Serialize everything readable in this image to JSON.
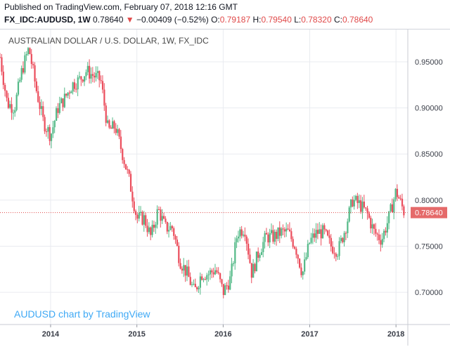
{
  "published": "Published on TradingView.com, February 07, 2018 12:16 GMT",
  "header": {
    "symbol": "FX_IDC:AUDUSD, 1W",
    "last": "0.78640",
    "change": "−0.00409 (−0.52%)",
    "o_label": "O:",
    "o_value": "0.79187",
    "h_label": "H:",
    "h_value": "0.79540",
    "l_label": "L:",
    "l_value": "0.78320",
    "c_label": "C:",
    "c_value": "0.78640"
  },
  "chart_title": "AUSTRALIAN DOLLAR / U.S. DOLLAR, 1W, FX_IDC",
  "watermark": "AUDUSD chart by TradingView",
  "colors": {
    "up": "#53b987",
    "down": "#eb4d5c",
    "grid": "#e9ebf0",
    "price_line": "#e04a4a",
    "price_label_bg": "#e56a6a"
  },
  "chart_data": {
    "type": "candlestick",
    "title": "AUSTRALIAN DOLLAR / U.S. DOLLAR, 1W, FX_IDC",
    "x_range": [
      "2013-06",
      "2018-02"
    ],
    "ylim": [
      0.665,
      0.985
    ],
    "y_ticks": [
      "0.95000",
      "0.90000",
      "0.85000",
      "0.80000",
      "0.75000",
      "0.70000"
    ],
    "y_tick_values": [
      0.95,
      0.9,
      0.85,
      0.8,
      0.75,
      0.7
    ],
    "x_ticks": [
      "2014",
      "2015",
      "2016",
      "2017",
      "2018"
    ],
    "x_tick_years": [
      2014,
      2015,
      2016,
      2017,
      2018
    ],
    "last_price": 0.7864,
    "last_price_label": "0.78640",
    "grid": true,
    "closes": [
      [
        "2013-06",
        0.955
      ],
      [
        "2013-07",
        0.905
      ],
      [
        "2013-08",
        0.9
      ],
      [
        "2013-09",
        0.94
      ],
      [
        "2013-10",
        0.965
      ],
      [
        "2013-11",
        0.92
      ],
      [
        "2013-12",
        0.885
      ],
      [
        "2014-01",
        0.87
      ],
      [
        "2014-02",
        0.9
      ],
      [
        "2014-03",
        0.91
      ],
      [
        "2014-04",
        0.925
      ],
      [
        "2014-05",
        0.93
      ],
      [
        "2014-06",
        0.94
      ],
      [
        "2014-07",
        0.935
      ],
      [
        "2014-08",
        0.93
      ],
      [
        "2014-09",
        0.875
      ],
      [
        "2014-10",
        0.88
      ],
      [
        "2014-11",
        0.85
      ],
      [
        "2014-12",
        0.82
      ],
      [
        "2015-01",
        0.78
      ],
      [
        "2015-02",
        0.78
      ],
      [
        "2015-03",
        0.76
      ],
      [
        "2015-04",
        0.79
      ],
      [
        "2015-05",
        0.77
      ],
      [
        "2015-06",
        0.77
      ],
      [
        "2015-07",
        0.735
      ],
      [
        "2015-08",
        0.72
      ],
      [
        "2015-09",
        0.7
      ],
      [
        "2015-10",
        0.72
      ],
      [
        "2015-11",
        0.72
      ],
      [
        "2015-12",
        0.725
      ],
      [
        "2016-01",
        0.7
      ],
      [
        "2016-02",
        0.715
      ],
      [
        "2016-03",
        0.765
      ],
      [
        "2016-04",
        0.77
      ],
      [
        "2016-05",
        0.72
      ],
      [
        "2016-06",
        0.745
      ],
      [
        "2016-07",
        0.76
      ],
      [
        "2016-08",
        0.76
      ],
      [
        "2016-09",
        0.765
      ],
      [
        "2016-10",
        0.765
      ],
      [
        "2016-11",
        0.75
      ],
      [
        "2016-12",
        0.72
      ],
      [
        "2017-01",
        0.755
      ],
      [
        "2017-02",
        0.765
      ],
      [
        "2017-03",
        0.765
      ],
      [
        "2017-04",
        0.75
      ],
      [
        "2017-05",
        0.745
      ],
      [
        "2017-06",
        0.77
      ],
      [
        "2017-07",
        0.8
      ],
      [
        "2017-08",
        0.795
      ],
      [
        "2017-09",
        0.785
      ],
      [
        "2017-10",
        0.765
      ],
      [
        "2017-11",
        0.757
      ],
      [
        "2017-12",
        0.78
      ],
      [
        "2018-01",
        0.81
      ],
      [
        "2018-02",
        0.7864
      ]
    ]
  }
}
